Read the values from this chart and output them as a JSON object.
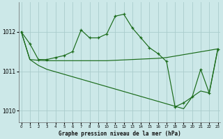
{
  "xlabel": "Graphe pression niveau de la mer (hPa)",
  "bg_color": "#cce8e8",
  "grid_color": "#aacccc",
  "line_color": "#1a6b1a",
  "ylim": [
    1009.7,
    1012.75
  ],
  "xlim": [
    -0.3,
    23.3
  ],
  "yticks": [
    1010,
    1011,
    1012
  ],
  "xticks": [
    0,
    1,
    2,
    3,
    4,
    5,
    6,
    7,
    8,
    9,
    10,
    11,
    12,
    13,
    14,
    15,
    16,
    17,
    18,
    19,
    20,
    21,
    22,
    23
  ],
  "line1_x": [
    0,
    1,
    2,
    3,
    4,
    5,
    6,
    7,
    8,
    9,
    10,
    11,
    12,
    13,
    14,
    15,
    16,
    17,
    18,
    19,
    20,
    21,
    22,
    23
  ],
  "line1_y": [
    1012.0,
    1011.7,
    1011.3,
    1011.3,
    1011.35,
    1011.4,
    1011.5,
    1012.05,
    1011.85,
    1011.85,
    1011.95,
    1012.4,
    1012.45,
    1012.1,
    1011.85,
    1011.6,
    1011.45,
    1011.25,
    1010.1,
    1010.2,
    1010.35,
    1011.05,
    1010.45,
    1011.55
  ],
  "line2_x": [
    0,
    1,
    2,
    3,
    10,
    15,
    16,
    17,
    23
  ],
  "line2_y": [
    1012.0,
    1011.3,
    1011.28,
    1011.27,
    1011.27,
    1011.32,
    1011.33,
    1011.35,
    1011.57
  ],
  "line3_x": [
    0,
    1,
    2,
    3,
    19,
    20,
    21,
    22,
    23
  ],
  "line3_y": [
    1012.0,
    1011.3,
    1011.15,
    1011.05,
    1010.05,
    1010.35,
    1010.5,
    1010.45,
    1011.57
  ]
}
